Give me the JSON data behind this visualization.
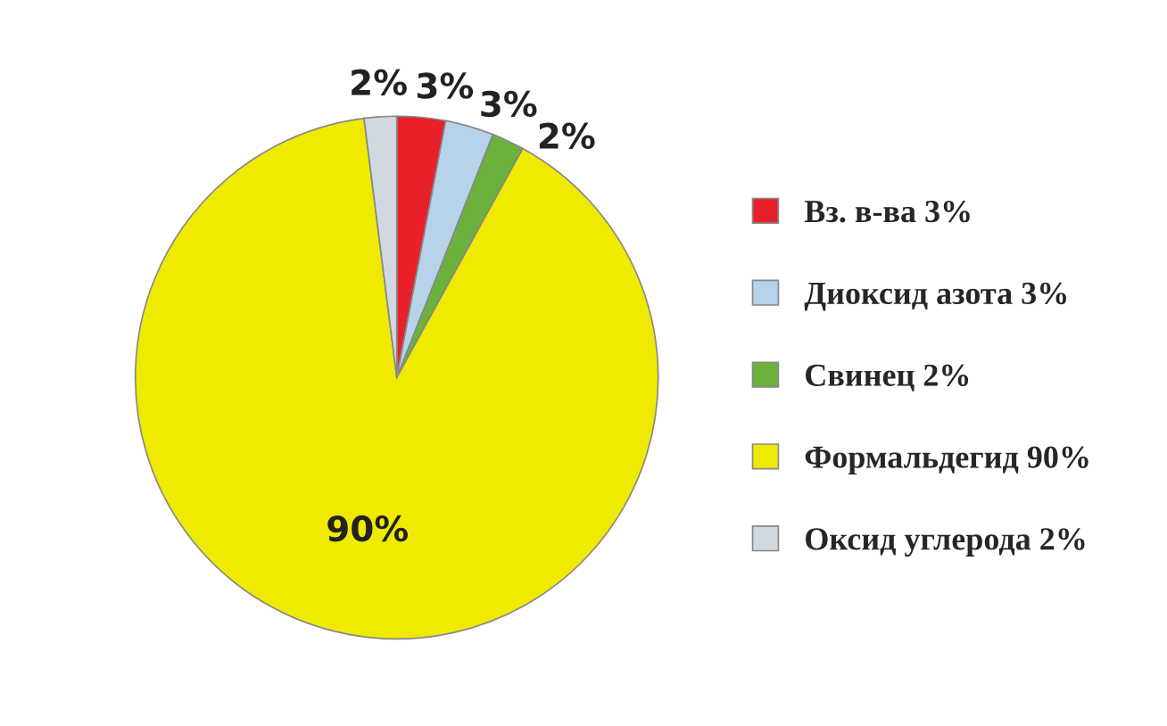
{
  "chart_data": {
    "type": "pie",
    "categories": [
      "Вз. в-ва 3%",
      "Диоксид азота 3%",
      "Свинец 2%",
      "Формальдегид 90%",
      "Оксид углерода 2%"
    ],
    "values": [
      3,
      3,
      2,
      90,
      2
    ],
    "value_labels": [
      "3%",
      "3%",
      "2%",
      "90%",
      "2%"
    ],
    "colors": [
      "#e8202a",
      "#b7d3ea",
      "#6ab23c",
      "#f0ea00",
      "#cfd9df"
    ],
    "legend": "right"
  }
}
